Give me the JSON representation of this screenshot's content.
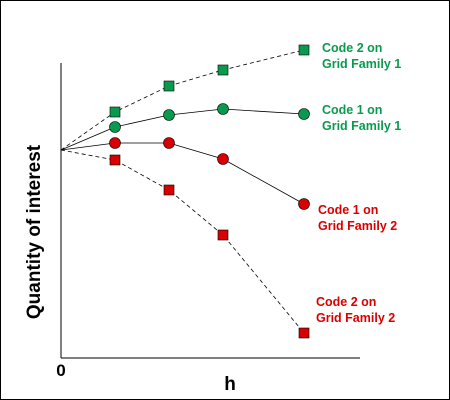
{
  "chart_data": {
    "type": "line",
    "xlabel": "h",
    "ylabel": "Quantity of interest",
    "origin_label": "0",
    "x_ticks": [],
    "y_ticks": [],
    "grid": false,
    "legend": "none",
    "common_start": {
      "x": 0,
      "y": 0
    },
    "series": [
      {
        "id": "c2g1",
        "label_lines": [
          "Code 2 on",
          "Grid Family 1"
        ],
        "color": "#0a9a4e",
        "marker": "square",
        "line": "dashed",
        "points": [
          [
            1,
            0.38
          ],
          [
            2,
            0.64
          ],
          [
            3,
            0.8
          ],
          [
            4.5,
            1.0
          ]
        ]
      },
      {
        "id": "c1g1",
        "label_lines": [
          "Code 1 on",
          "Grid Family 1"
        ],
        "color": "#0a9a4e",
        "marker": "circle",
        "line": "solid",
        "points": [
          [
            1,
            0.23
          ],
          [
            2,
            0.35
          ],
          [
            3,
            0.41
          ],
          [
            4.5,
            0.36
          ]
        ]
      },
      {
        "id": "c1g2",
        "label_lines": [
          "Code 1 on",
          "Grid Family 2"
        ],
        "color": "#d80000",
        "marker": "circle",
        "line": "solid",
        "points": [
          [
            1,
            0.07
          ],
          [
            2,
            0.07
          ],
          [
            3,
            -0.09
          ],
          [
            4.5,
            -0.54
          ]
        ]
      },
      {
        "id": "c2g2",
        "label_lines": [
          "Code 2 on",
          "Grid Family 2"
        ],
        "color": "#d80000",
        "marker": "square",
        "line": "dashed",
        "points": [
          [
            1,
            -0.1
          ],
          [
            2,
            -0.4
          ],
          [
            3,
            -0.85
          ],
          [
            4.5,
            -1.83
          ]
        ]
      }
    ]
  }
}
